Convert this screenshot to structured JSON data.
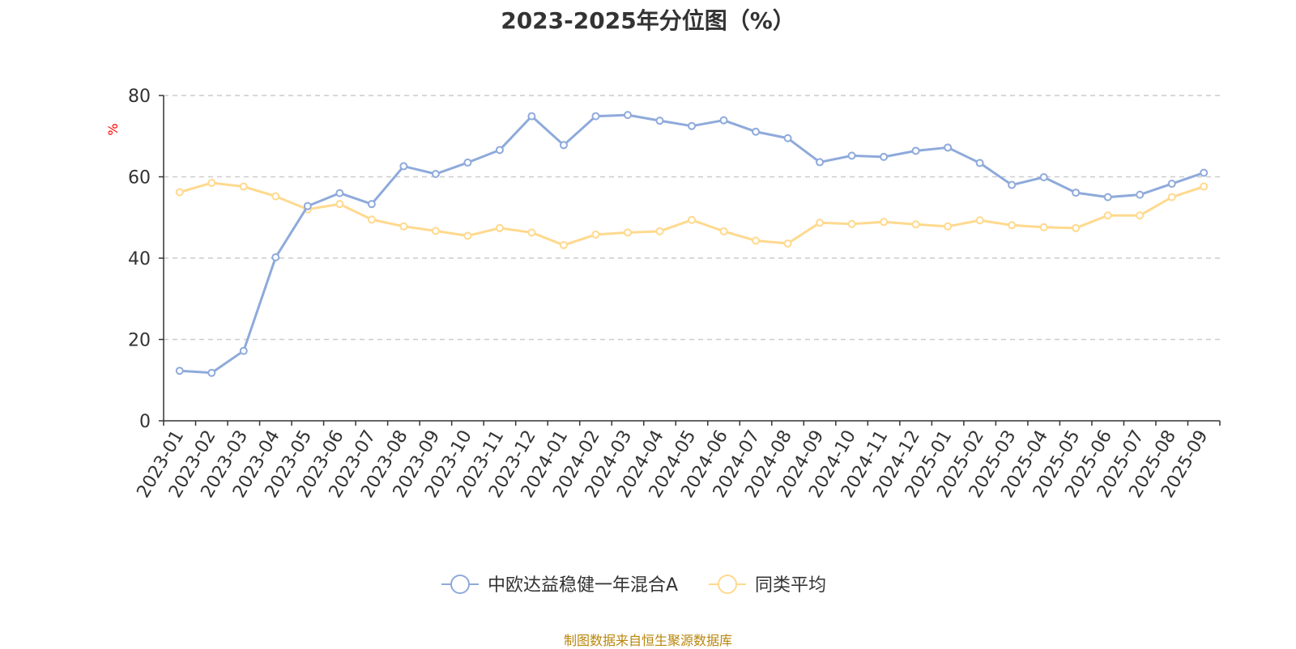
{
  "chart_data": {
    "type": "line",
    "title": "2023-2025年分位图（%）",
    "ylabel": "%",
    "xlabel": "",
    "ylim": [
      0,
      80
    ],
    "yticks": [
      0,
      20,
      40,
      60,
      80
    ],
    "grid": true,
    "legend_position": "bottom-center",
    "categories": [
      "2023-01",
      "2023-02",
      "2023-03",
      "2023-04",
      "2023-05",
      "2023-06",
      "2023-07",
      "2023-08",
      "2023-09",
      "2023-10",
      "2023-11",
      "2023-12",
      "2024-01",
      "2024-02",
      "2024-03",
      "2024-04",
      "2024-05",
      "2024-06",
      "2024-07",
      "2024-08",
      "2024-09",
      "2024-10",
      "2024-11",
      "2024-12",
      "2025-01",
      "2025-02",
      "2025-03",
      "2025-04",
      "2025-05",
      "2025-06",
      "2025-07",
      "2025-08",
      "2025-09"
    ],
    "series": [
      {
        "name": "中欧达益稳健一年混合A",
        "color": "#8eaadb",
        "values": [
          12.3,
          11.8,
          17.2,
          40.2,
          52.8,
          56.0,
          53.3,
          62.6,
          60.7,
          63.5,
          66.6,
          74.9,
          67.8,
          74.9,
          75.2,
          73.8,
          72.5,
          73.9,
          71.1,
          69.5,
          63.6,
          65.2,
          64.9,
          66.4,
          67.2,
          63.4,
          58.0,
          59.9,
          56.1,
          55.0,
          55.6,
          58.3,
          61.0
        ]
      },
      {
        "name": "同类平均",
        "color": "#ffd98e",
        "values": [
          56.2,
          58.5,
          57.6,
          55.2,
          52.0,
          53.3,
          49.5,
          47.8,
          46.7,
          45.5,
          47.4,
          46.3,
          43.2,
          45.8,
          46.3,
          46.6,
          49.4,
          46.6,
          44.3,
          43.6,
          48.7,
          48.4,
          48.9,
          48.3,
          47.8,
          49.3,
          48.1,
          47.6,
          47.4,
          50.5,
          50.5,
          55.0,
          57.6
        ]
      }
    ]
  },
  "footer": {
    "source_text": "制图数据来自恒生聚源数据库"
  }
}
